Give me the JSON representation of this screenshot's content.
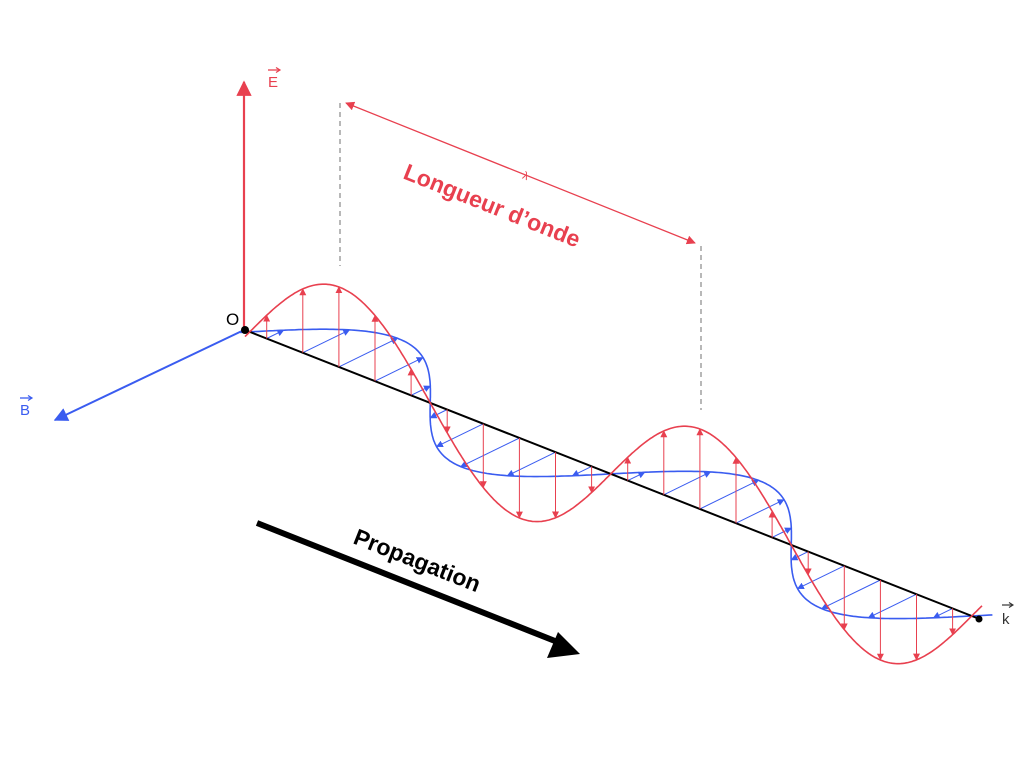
{
  "labels": {
    "electric_field": "E",
    "magnetic_field": "B",
    "wave_vector": "k",
    "origin": "O",
    "wavelength_symbol": "λ",
    "wavelength_text": "Longueur d’onde",
    "propagation_text": "Propagation"
  },
  "colors": {
    "electric": "#e8404f",
    "magnetic": "#3a5cf0",
    "axis": "#000000",
    "annotation": "#e8404f",
    "guide": "#888888"
  },
  "wave": {
    "wavelengths_shown": 2.5
  }
}
